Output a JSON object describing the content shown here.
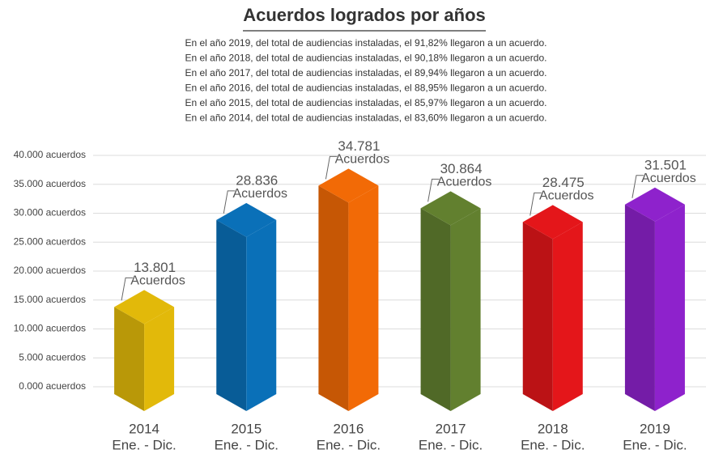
{
  "chart_data": {
    "type": "bar3d",
    "title": "Acuerdos logrados por años",
    "notes": [
      "En el año 2019, del total de audiencias instaladas, el 91,82% llegaron a un acuerdo.",
      "En el año 2018, del total de audiencias instaladas, el 90,18% llegaron a un acuerdo.",
      "En el año 2017, del total de audiencias instaladas, el 89,94% llegaron a un acuerdo.",
      "En el año 2016, del total de audiencias instaladas, el 88,95% llegaron a un acuerdo.",
      "En el año 2015, del total de audiencias instaladas, el 85,97% llegaron a un acuerdo.",
      "En el año 2014, del total de audiencias instaladas, el 83,60% llegaron a un acuerdo."
    ],
    "categories": [
      "2014",
      "2015",
      "2016",
      "2017",
      "2018",
      "2019"
    ],
    "period_labels": [
      "Ene. - Dic.",
      "Ene. - Dic.",
      "Ene. - Dic.",
      "Ene. - Dic.",
      "Ene. - Dic.",
      "Ene. - Dic."
    ],
    "values": [
      13801,
      28836,
      34781,
      30864,
      28475,
      31501
    ],
    "value_labels": [
      "13.801",
      "28.836",
      "34.781",
      "30.864",
      "28.475",
      "31.501"
    ],
    "value_unit": "Acuerdos",
    "colors": [
      "#e2b90a",
      "#0a70b8",
      "#f26a06",
      "#62802f",
      "#e4161a",
      "#8e22cc"
    ],
    "ylim": [
      0,
      40000
    ],
    "yticks": [
      {
        "value": 0,
        "label": "0.000 acuerdos"
      },
      {
        "value": 5000,
        "label": "5.000 acuerdos"
      },
      {
        "value": 10000,
        "label": "10.000 acuerdos"
      },
      {
        "value": 15000,
        "label": "15.000 acuerdos"
      },
      {
        "value": 20000,
        "label": "20.000 acuerdos"
      },
      {
        "value": 25000,
        "label": "25.000 acuerdos"
      },
      {
        "value": 30000,
        "label": "30.000 acuerdos"
      },
      {
        "value": 35000,
        "label": "35.000 acuerdos"
      },
      {
        "value": 40000,
        "label": "40.000 acuerdos"
      }
    ],
    "grid": true
  }
}
